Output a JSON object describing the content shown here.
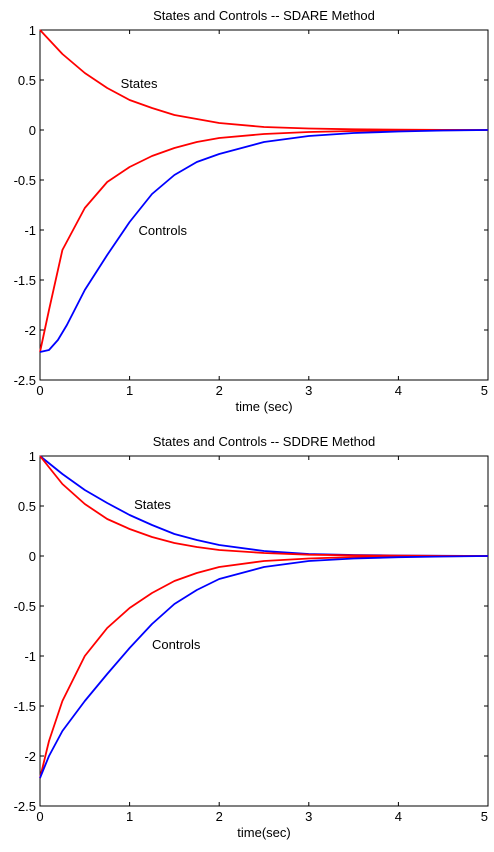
{
  "colors": {
    "red": "#ff0000",
    "blue": "#0000ff",
    "axis": "#000000",
    "background": "#ffffff"
  },
  "chart_data": [
    {
      "type": "line",
      "title": "States and Controls -- SDARE Method",
      "xlabel": "time (sec)",
      "ylabel": "",
      "xlim": [
        0,
        5
      ],
      "ylim": [
        -2.5,
        1
      ],
      "xticks": [
        "0",
        "1",
        "2",
        "3",
        "4",
        "5"
      ],
      "yticks": [
        "1",
        "0.5",
        "0",
        "-0.5",
        "-1",
        "-1.5",
        "-2",
        "-2.5"
      ],
      "grid": false,
      "series": [
        {
          "color": "#ff0000",
          "x": [
            0,
            0.25,
            0.5,
            0.75,
            1,
            1.25,
            1.5,
            1.75,
            2,
            2.5,
            3,
            3.5,
            4,
            4.5,
            5
          ],
          "y": [
            1,
            0.76,
            0.57,
            0.42,
            0.3,
            0.22,
            0.15,
            0.11,
            0.07,
            0.03,
            0.015,
            0.007,
            0.003,
            0.001,
            0
          ]
        },
        {
          "color": "#ff0000",
          "x": [
            0,
            0.1,
            0.25,
            0.5,
            0.75,
            1,
            1.25,
            1.5,
            1.75,
            2,
            2.5,
            3,
            3.5,
            4,
            4.5,
            5
          ],
          "y": [
            -2.22,
            -1.8,
            -1.2,
            -0.78,
            -0.52,
            -0.37,
            -0.26,
            -0.18,
            -0.12,
            -0.08,
            -0.04,
            -0.02,
            -0.01,
            -0.005,
            -0.002,
            0
          ]
        },
        {
          "color": "#0000ff",
          "x": [
            0,
            0.1,
            0.2,
            0.3,
            0.5,
            0.75,
            1,
            1.25,
            1.5,
            1.75,
            2,
            2.5,
            3,
            3.5,
            4,
            4.5,
            5
          ],
          "y": [
            -2.22,
            -2.2,
            -2.1,
            -1.95,
            -1.6,
            -1.25,
            -0.92,
            -0.64,
            -0.45,
            -0.32,
            -0.24,
            -0.12,
            -0.06,
            -0.03,
            -0.015,
            -0.005,
            0
          ]
        }
      ],
      "annotations": [
        {
          "text": "States",
          "x": 0.9,
          "y": 0.42
        },
        {
          "text": "Controls",
          "x": 1.1,
          "y": -1.05
        }
      ]
    },
    {
      "type": "line",
      "title": "States and Controls -- SDDRE Method",
      "xlabel": "time(sec)",
      "ylabel": "",
      "xlim": [
        0,
        5
      ],
      "ylim": [
        -2.5,
        1
      ],
      "xticks": [
        "0",
        "1",
        "2",
        "3",
        "4",
        "5"
      ],
      "yticks": [
        "1",
        "0.5",
        "0",
        "-0.5",
        "-1",
        "-1.5",
        "-2",
        "-2.5"
      ],
      "grid": false,
      "series": [
        {
          "color": "#0000ff",
          "x": [
            0,
            0.25,
            0.5,
            0.75,
            1,
            1.25,
            1.5,
            1.75,
            2,
            2.5,
            3,
            3.5,
            4,
            4.5,
            5
          ],
          "y": [
            1,
            0.82,
            0.66,
            0.53,
            0.41,
            0.31,
            0.22,
            0.16,
            0.11,
            0.05,
            0.02,
            0.01,
            0.005,
            0.002,
            0
          ]
        },
        {
          "color": "#ff0000",
          "x": [
            0,
            0.25,
            0.5,
            0.75,
            1,
            1.25,
            1.5,
            1.75,
            2,
            2.5,
            3,
            3.5,
            4,
            4.5,
            5
          ],
          "y": [
            1,
            0.72,
            0.52,
            0.37,
            0.27,
            0.19,
            0.13,
            0.09,
            0.06,
            0.03,
            0.013,
            0.006,
            0.003,
            0.001,
            0
          ]
        },
        {
          "color": "#ff0000",
          "x": [
            0,
            0.1,
            0.25,
            0.5,
            0.75,
            1,
            1.25,
            1.5,
            1.75,
            2,
            2.5,
            3,
            3.5,
            4,
            4.5,
            5
          ],
          "y": [
            -2.22,
            -1.85,
            -1.45,
            -1.0,
            -0.72,
            -0.52,
            -0.37,
            -0.25,
            -0.17,
            -0.11,
            -0.05,
            -0.025,
            -0.01,
            -0.005,
            -0.002,
            0
          ]
        },
        {
          "color": "#0000ff",
          "x": [
            0,
            0.1,
            0.25,
            0.5,
            0.75,
            1,
            1.25,
            1.5,
            1.75,
            2,
            2.5,
            3,
            3.5,
            4,
            4.5,
            5
          ],
          "y": [
            -2.22,
            -2.0,
            -1.75,
            -1.45,
            -1.18,
            -0.92,
            -0.68,
            -0.48,
            -0.34,
            -0.23,
            -0.11,
            -0.05,
            -0.025,
            -0.012,
            -0.005,
            0
          ]
        }
      ],
      "annotations": [
        {
          "text": "States",
          "x": 1.05,
          "y": 0.47
        },
        {
          "text": "Controls",
          "x": 1.25,
          "y": -0.93
        }
      ]
    }
  ]
}
